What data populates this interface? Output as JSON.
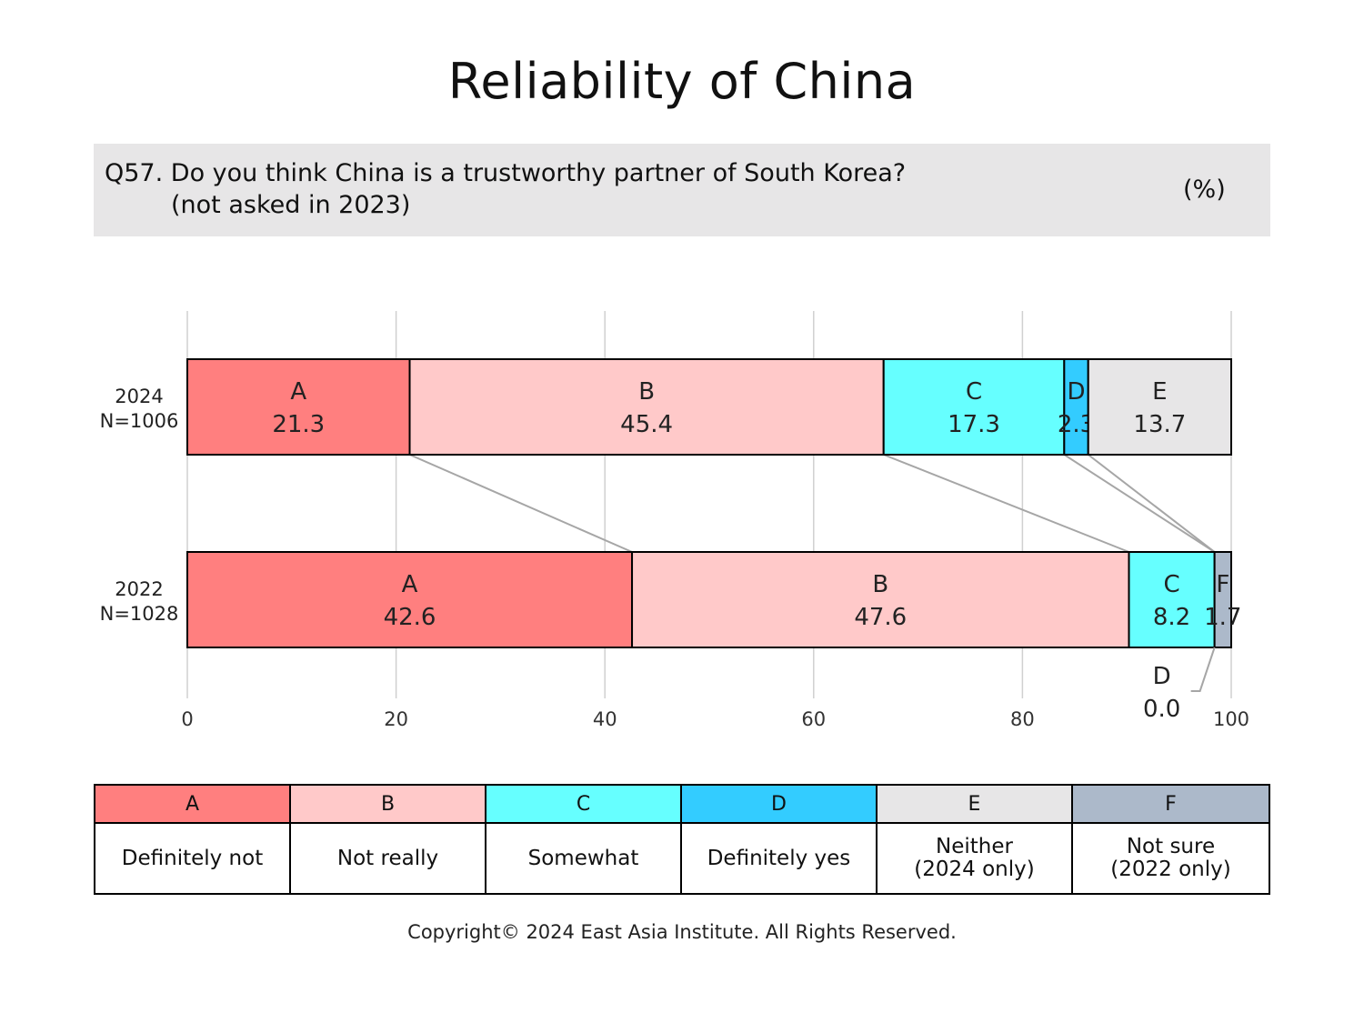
{
  "title": "Reliability of China",
  "question": {
    "line1": "Q57. Do you think China is a trustworthy partner of South Korea?",
    "line2": "(not asked in 2023)",
    "unit": "(%)"
  },
  "chart_data": {
    "type": "bar",
    "orientation": "horizontal",
    "stacked": true,
    "xlim": [
      0,
      100
    ],
    "xticks": [
      "0",
      "20",
      "40",
      "60",
      "80",
      "100"
    ],
    "grid": true,
    "rows": [
      {
        "label": "2024",
        "sublabel": "N=1006",
        "segments": [
          {
            "key": "A",
            "value": 21.3
          },
          {
            "key": "B",
            "value": 45.4
          },
          {
            "key": "C",
            "value": 17.3
          },
          {
            "key": "D",
            "value": 2.3
          },
          {
            "key": "E",
            "value": 13.7
          }
        ]
      },
      {
        "label": "2022",
        "sublabel": "N=1028",
        "segments": [
          {
            "key": "A",
            "value": 42.6
          },
          {
            "key": "B",
            "value": 47.6
          },
          {
            "key": "C",
            "value": 8.2
          },
          {
            "key": "D",
            "value": 0.0
          },
          {
            "key": "F",
            "value": 1.7
          }
        ]
      }
    ],
    "callout": {
      "key": "D",
      "value": "0.0"
    }
  },
  "legend": [
    {
      "key": "A",
      "label": "Definitely not",
      "color": "#ff7f7f"
    },
    {
      "key": "B",
      "label": "Not really",
      "color": "#ffc9c9"
    },
    {
      "key": "C",
      "label": "Somewhat",
      "color": "#66ffff"
    },
    {
      "key": "D",
      "label": "Definitely yes",
      "color": "#33ccff"
    },
    {
      "key": "E",
      "label": "Neither\n(2024 only)",
      "color": "#e7e6e7"
    },
    {
      "key": "F",
      "label": "Not sure\n(2022 only)",
      "color": "#acb9ca"
    }
  ],
  "copyright": "Copyright© 2024 East Asia Institute. All Rights Reserved."
}
